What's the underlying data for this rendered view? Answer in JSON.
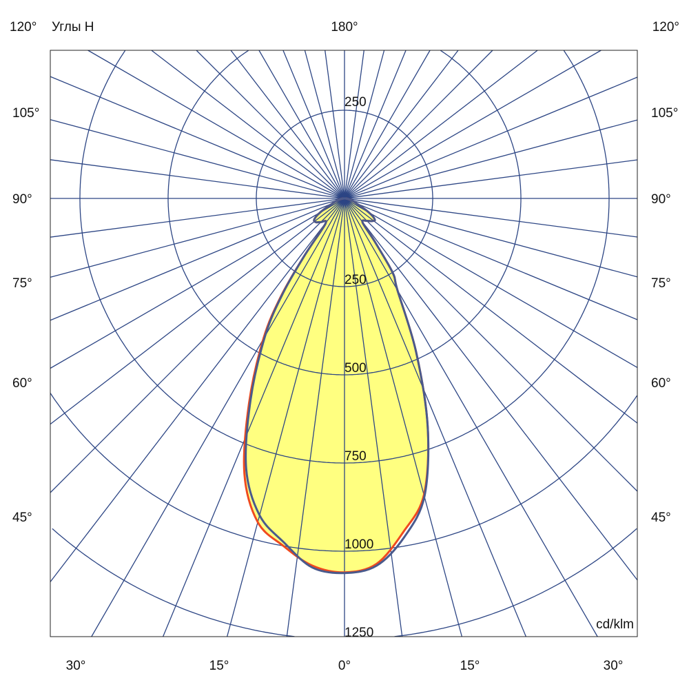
{
  "chart_data": {
    "type": "polar",
    "title": "Углы H",
    "unit": "cd/klm",
    "top_labels": {
      "left": "120°",
      "center": "180°",
      "right": "120°"
    },
    "side_labels": [
      "105°",
      "90°",
      "75°",
      "60°",
      "45°"
    ],
    "bottom_labels": [
      "30°",
      "15°",
      "0°",
      "15°",
      "30°"
    ],
    "ring_values": [
      250,
      500,
      750,
      1000,
      1250
    ],
    "ring_labels": [
      "250",
      "500",
      "750",
      "1000",
      "1250"
    ],
    "top_ring_label": "250",
    "radial_step_deg": 7.5,
    "angles": [
      -90,
      -80,
      -70,
      -60,
      -55,
      -50,
      -45,
      -37,
      -35,
      -33,
      -30,
      -25,
      -20,
      -15,
      -10,
      -5,
      0,
      5,
      10,
      15,
      20,
      25,
      30,
      33,
      35,
      37,
      45,
      50,
      55,
      60,
      70,
      80,
      90
    ],
    "series": [
      {
        "color": "#f04a1e",
        "values": [
          3,
          12,
          30,
          80,
          105,
          105,
          95,
          90,
          200,
          330,
          460,
          640,
          830,
          950,
          1000,
          1045,
          1060,
          1040,
          960,
          870,
          690,
          480,
          300,
          250,
          150,
          85,
          90,
          100,
          105,
          80,
          30,
          12,
          3
        ]
      },
      {
        "color": "#4a5a8c",
        "values": [
          3,
          12,
          30,
          80,
          105,
          105,
          95,
          90,
          195,
          320,
          450,
          630,
          815,
          930,
          990,
          1050,
          1062,
          1045,
          975,
          875,
          690,
          480,
          300,
          250,
          150,
          85,
          90,
          100,
          105,
          80,
          30,
          12,
          3
        ]
      }
    ],
    "fill_color": "#ffff80",
    "grid_color": "#2c4584"
  }
}
